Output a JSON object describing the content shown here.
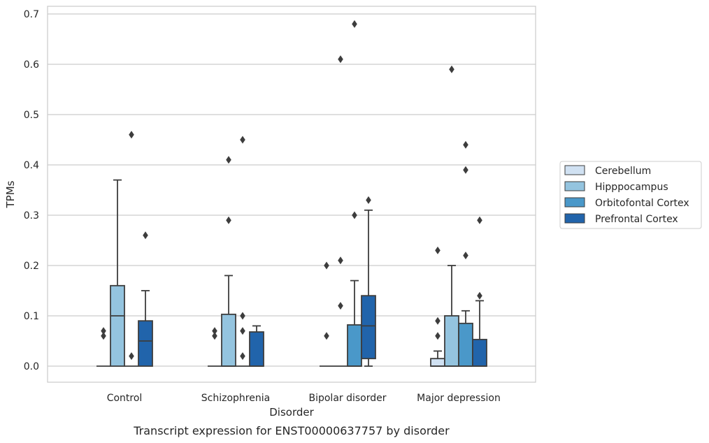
{
  "caption": "Transcript expression for ENST00000637757 by disorder",
  "chart_data": {
    "type": "box",
    "xlabel": "Disorder",
    "ylabel": "TPMs",
    "ylim": [
      -0.033,
      0.72
    ],
    "yticks": [
      "0.0",
      "0.1",
      "0.2",
      "0.3",
      "0.4",
      "0.5",
      "0.6",
      "0.7"
    ],
    "grid": true,
    "legend_position": "right",
    "categories": [
      "Control",
      "Schizophrenia",
      "Bipolar disorder",
      "Major depression"
    ],
    "series": [
      {
        "name": "Cerebellum",
        "color": "#d0e1f2",
        "boxes": [
          {
            "whislo": 0,
            "q1": 0,
            "med": 0,
            "q3": 0,
            "whishi": 0,
            "fliers": [
              0.06,
              0.07
            ]
          },
          {
            "whislo": 0,
            "q1": 0,
            "med": 0,
            "q3": 0,
            "whishi": 0,
            "fliers": [
              0.06,
              0.07
            ]
          },
          {
            "whislo": 0,
            "q1": 0,
            "med": 0,
            "q3": 0,
            "whishi": 0,
            "fliers": [
              0.06,
              0.2
            ]
          },
          {
            "whislo": 0,
            "q1": 0,
            "med": 0,
            "q3": 0.015,
            "whishi": 0.03,
            "fliers": [
              0.06,
              0.09,
              0.23
            ]
          }
        ]
      },
      {
        "name": "Hipppocampus",
        "color": "#94c4df",
        "boxes": [
          {
            "whislo": 0,
            "q1": 0,
            "med": 0.1,
            "q3": 0.16,
            "whishi": 0.37,
            "fliers": []
          },
          {
            "whislo": 0,
            "q1": 0,
            "med": 0,
            "q3": 0.103,
            "whishi": 0.18,
            "fliers": [
              0.29,
              0.41
            ]
          },
          {
            "whislo": 0,
            "q1": 0,
            "med": 0,
            "q3": 0,
            "whishi": 0,
            "fliers": [
              0.12,
              0.21,
              0.61
            ]
          },
          {
            "whislo": 0,
            "q1": 0,
            "med": 0,
            "q3": 0.1,
            "whishi": 0.2,
            "fliers": [
              0.59
            ]
          }
        ]
      },
      {
        "name": "Orbitofontal Cortex",
        "color": "#4a98c9",
        "boxes": [
          {
            "whislo": 0,
            "q1": 0,
            "med": 0,
            "q3": 0,
            "whishi": 0,
            "fliers": [
              0.02,
              0.46
            ]
          },
          {
            "whislo": 0,
            "q1": 0,
            "med": 0,
            "q3": 0,
            "whishi": 0,
            "fliers": [
              0.02,
              0.07,
              0.1,
              0.45
            ]
          },
          {
            "whislo": 0,
            "q1": 0,
            "med": 0,
            "q3": 0.082,
            "whishi": 0.17,
            "fliers": [
              0.3,
              0.68
            ]
          },
          {
            "whislo": 0,
            "q1": 0,
            "med": 0,
            "q3": 0.085,
            "whishi": 0.11,
            "fliers": [
              0.22,
              0.39,
              0.44
            ]
          }
        ]
      },
      {
        "name": "Prefrontal Cortex",
        "color": "#2164ab",
        "boxes": [
          {
            "whislo": 0,
            "q1": 0,
            "med": 0.05,
            "q3": 0.09,
            "whishi": 0.15,
            "fliers": [
              0.26
            ]
          },
          {
            "whislo": 0,
            "q1": 0,
            "med": 0,
            "q3": 0.068,
            "whishi": 0.08,
            "fliers": []
          },
          {
            "whislo": 0,
            "q1": 0.015,
            "med": 0.08,
            "q3": 0.14,
            "whishi": 0.31,
            "fliers": [
              0.33
            ]
          },
          {
            "whislo": 0,
            "q1": 0,
            "med": 0,
            "q3": 0.053,
            "whishi": 0.13,
            "fliers": [
              0.14,
              0.29
            ]
          }
        ]
      }
    ]
  }
}
